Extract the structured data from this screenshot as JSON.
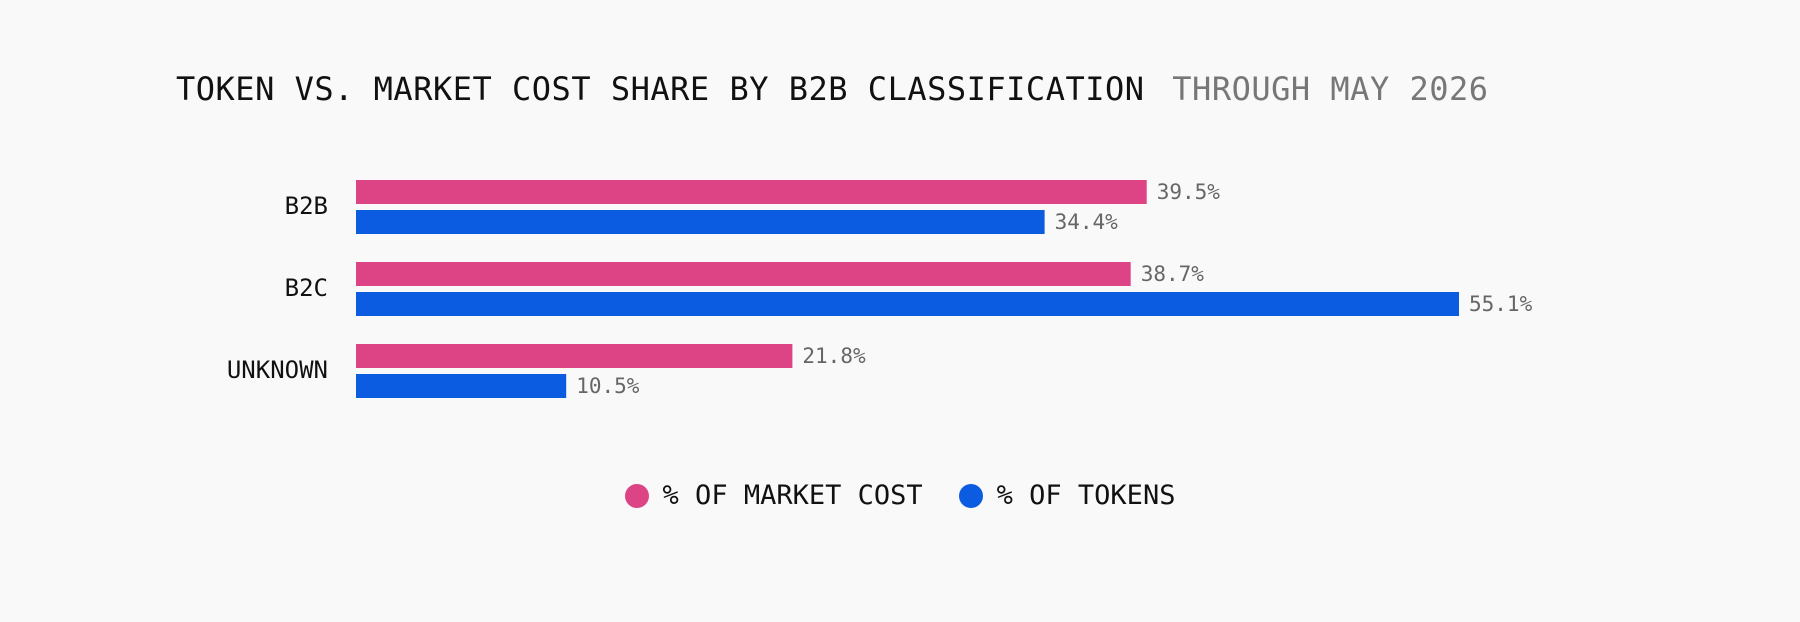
{
  "chart_data": {
    "type": "bar",
    "orientation": "horizontal",
    "title": "TOKEN VS. MARKET COST SHARE BY B2B CLASSIFICATION",
    "subtitle": "THROUGH MAY 2026",
    "categories": [
      "B2B",
      "B2C",
      "UNKNOWN"
    ],
    "series": [
      {
        "name": "% OF MARKET COST",
        "color": "#dd4485",
        "values": [
          39.5,
          38.7,
          21.8
        ],
        "labels": [
          "39.5%",
          "38.7%",
          "21.8%"
        ]
      },
      {
        "name": "% OF TOKENS",
        "color": "#0b5ce1",
        "values": [
          34.4,
          55.1,
          10.5
        ],
        "labels": [
          "34.4%",
          "55.1%",
          "10.5%"
        ]
      }
    ],
    "xlim": [
      0,
      55.1
    ],
    "grid": false,
    "legend_position": "bottom-center"
  }
}
